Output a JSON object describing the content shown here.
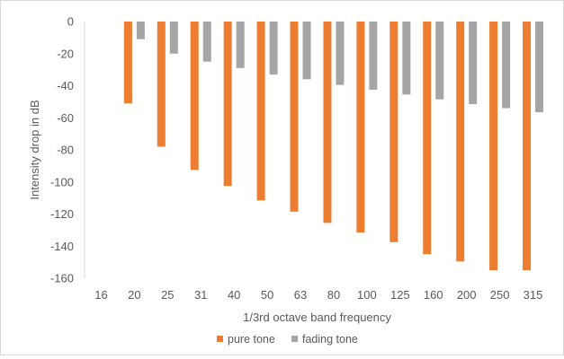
{
  "chart_data": {
    "type": "bar",
    "title": "",
    "xlabel": "1/3rd octave band frequency",
    "ylabel": "Intensity drop in dB",
    "categories": [
      "16",
      "20",
      "25",
      "31",
      "40",
      "50",
      "63",
      "80",
      "100",
      "125",
      "160",
      "200",
      "250",
      "315"
    ],
    "ylim": [
      -160,
      0
    ],
    "yticks": [
      0,
      -20,
      -40,
      -60,
      -80,
      -100,
      -120,
      -140,
      -160
    ],
    "grid": false,
    "legend": "bottom",
    "series": [
      {
        "name": "pure tone",
        "color": "#ED7D31",
        "values": [
          null,
          -51,
          -78,
          -92.5,
          -102.5,
          -111.5,
          -118.5,
          -125.5,
          -131.5,
          -137.5,
          -145,
          -149.5,
          -155,
          -155
        ]
      },
      {
        "name": "fading tone",
        "color": "#A5A5A5",
        "values": [
          null,
          -11,
          -20,
          -25,
          -29,
          -33,
          -36,
          -39.5,
          -42.5,
          -45.5,
          -48.5,
          -51.5,
          -54,
          -56.5
        ]
      }
    ]
  }
}
